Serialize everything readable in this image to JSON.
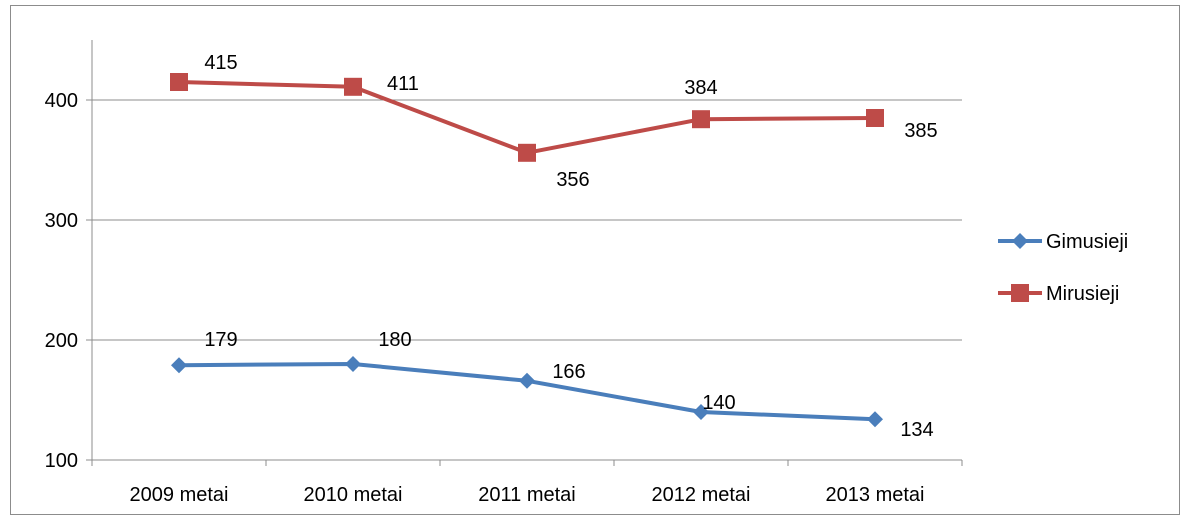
{
  "chart_data": {
    "type": "line",
    "title": "",
    "xlabel": "",
    "ylabel": "",
    "categories": [
      "2009 metai",
      "2010 metai",
      "2011 metai",
      "2012 metai",
      "2013 metai"
    ],
    "ylim": [
      100,
      450
    ],
    "yticks": [
      100,
      200,
      300,
      400
    ],
    "grid": true,
    "legend_position": "right",
    "series": [
      {
        "name": "Gimusieji",
        "values": [
          179,
          180,
          166,
          140,
          134
        ],
        "color": "#4a7ebb",
        "marker": "diamond"
      },
      {
        "name": "Mirusieji",
        "values": [
          415,
          411,
          356,
          384,
          385
        ],
        "color": "#be4b48",
        "marker": "square"
      }
    ]
  }
}
